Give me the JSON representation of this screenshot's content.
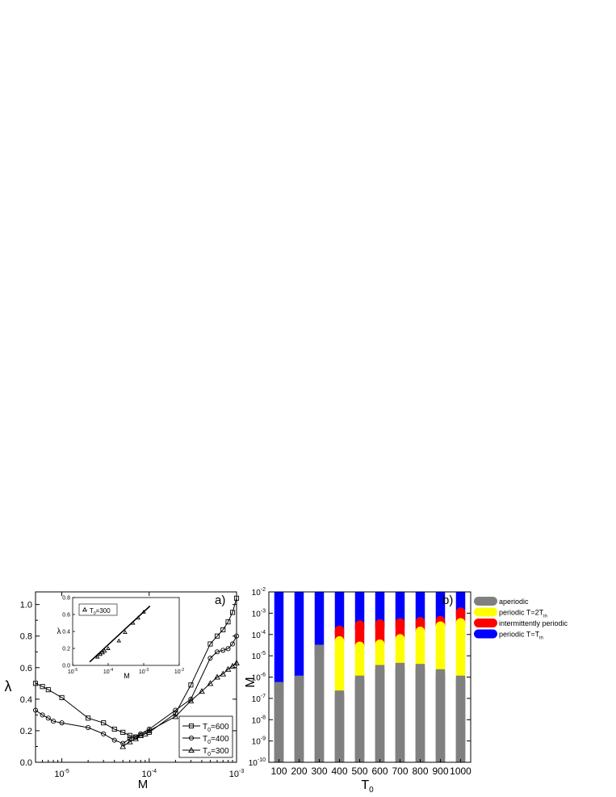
{
  "chart_data": [
    {
      "id": "a",
      "type": "line",
      "panel_label": "a)",
      "xlabel": "M",
      "ylabel": "λ",
      "xscale": "log",
      "xlim": [
        5e-06,
        0.001
      ],
      "ylim": [
        0.0,
        1.08
      ],
      "x_ticks": [
        {
          "value": 1e-05,
          "base": "10",
          "exp": "-5"
        },
        {
          "value": 0.0001,
          "base": "10",
          "exp": "-4"
        },
        {
          "value": 0.001,
          "base": "10",
          "exp": "-3"
        }
      ],
      "y_ticks": [
        "0.0",
        "0.2",
        "0.4",
        "0.6",
        "0.8",
        "1.0"
      ],
      "legend_position": "bottom-right",
      "series": [
        {
          "name_base": "T",
          "name_sub": "0",
          "name_rest": "=600",
          "marker": "square",
          "x": [
            5e-06,
            6e-06,
            7e-06,
            1e-05,
            2e-05,
            3e-05,
            4e-05,
            5e-05,
            6e-05,
            7e-05,
            8e-05,
            0.0001,
            0.0002,
            0.0003,
            0.0005,
            0.0006,
            0.0007,
            0.0008,
            0.0009,
            0.001
          ],
          "y": [
            0.5,
            0.48,
            0.46,
            0.41,
            0.28,
            0.25,
            0.21,
            0.19,
            0.17,
            0.16,
            0.17,
            0.19,
            0.31,
            0.49,
            0.75,
            0.8,
            0.84,
            0.89,
            0.95,
            1.04
          ]
        },
        {
          "name_base": "T",
          "name_sub": "0",
          "name_rest": "=400",
          "marker": "circle",
          "x": [
            5e-06,
            6e-06,
            7e-06,
            8e-06,
            1e-05,
            2e-05,
            3e-05,
            4e-05,
            5e-05,
            6e-05,
            7e-05,
            8e-05,
            0.0001,
            0.0002,
            0.0003,
            0.0005,
            0.0006,
            0.0007,
            0.0008,
            0.0009,
            0.001
          ],
          "y": [
            0.33,
            0.3,
            0.28,
            0.26,
            0.25,
            0.22,
            0.18,
            0.14,
            0.12,
            0.15,
            0.16,
            0.18,
            0.21,
            0.33,
            0.4,
            0.66,
            0.7,
            0.71,
            0.72,
            0.75,
            0.8
          ]
        },
        {
          "name_base": "T",
          "name_sub": "0",
          "name_rest": "=300",
          "marker": "triangle",
          "x": [
            5e-05,
            6e-05,
            7e-05,
            8e-05,
            9e-05,
            0.0001,
            0.0002,
            0.0003,
            0.0004,
            0.0005,
            0.0006,
            0.0007,
            0.0008,
            0.0009,
            0.001
          ],
          "y": [
            0.1,
            0.13,
            0.15,
            0.17,
            0.18,
            0.2,
            0.29,
            0.39,
            0.45,
            0.5,
            0.54,
            0.56,
            0.59,
            0.61,
            0.63
          ]
        }
      ],
      "inset": {
        "xlabel": "M",
        "ylabel": "λ",
        "xscale": "log",
        "xlim": [
          1e-05,
          0.01
        ],
        "ylim": [
          0.0,
          0.8
        ],
        "x_ticks": [
          {
            "value": 1e-05,
            "base": "10",
            "exp": "-5"
          },
          {
            "value": 0.0001,
            "base": "10",
            "exp": "-4"
          },
          {
            "value": 0.001,
            "base": "10",
            "exp": "-3"
          },
          {
            "value": 0.01,
            "base": "10",
            "exp": "-2"
          }
        ],
        "y_ticks": [
          "0.0",
          "0.2",
          "0.4",
          "0.6",
          "0.8"
        ],
        "legend": {
          "name_base": "T",
          "name_sub": "0",
          "name_rest": "=300"
        },
        "points_x": [
          5e-05,
          6e-05,
          7e-05,
          8e-05,
          0.0001,
          0.0002,
          0.0003,
          0.0005,
          0.0007,
          0.001
        ],
        "points_y": [
          0.1,
          0.13,
          0.15,
          0.17,
          0.2,
          0.29,
          0.39,
          0.5,
          0.56,
          0.63
        ],
        "fit_x": [
          3e-05,
          0.0015
        ],
        "fit_y": [
          0.04,
          0.7
        ]
      }
    },
    {
      "id": "b",
      "type": "bar",
      "panel_label": "b)",
      "xlabel": "T",
      "xlabel_sub": "0",
      "ylabel": "M",
      "yscale": "log",
      "ylim_exp": [
        -10,
        -2
      ],
      "y_ticks": [
        {
          "base": "10",
          "exp": "-10"
        },
        {
          "base": "10",
          "exp": "-9"
        },
        {
          "base": "10",
          "exp": "-8"
        },
        {
          "base": "10",
          "exp": "-7"
        },
        {
          "base": "10",
          "exp": "-6"
        },
        {
          "base": "10",
          "exp": "-5"
        },
        {
          "base": "10",
          "exp": "-4"
        },
        {
          "base": "10",
          "exp": "-3"
        },
        {
          "base": "10",
          "exp": "-2"
        }
      ],
      "categories": [
        "100",
        "200",
        "300",
        "400",
        "500",
        "600",
        "700",
        "800",
        "900",
        "1000"
      ],
      "regions": [
        {
          "key": "aperiodic",
          "color": "#808080"
        },
        {
          "key": "period2",
          "color": "#ffff00"
        },
        {
          "key": "intermittent",
          "color": "#ff0000"
        },
        {
          "key": "period1",
          "color": "#0000ff"
        }
      ],
      "boundaries_log10": [
        {
          "aperiodic_to": -6.45,
          "period2_to": -6.45,
          "intermittent_to": -6.45
        },
        {
          "aperiodic_to": -6.15,
          "period2_to": -6.15,
          "intermittent_to": -6.15
        },
        {
          "aperiodic_to": -4.7,
          "period2_to": -4.7,
          "intermittent_to": -4.7
        },
        {
          "aperiodic_to": -6.85,
          "period2_to": -4.3,
          "intermittent_to": -3.8
        },
        {
          "aperiodic_to": -6.15,
          "period2_to": -4.55,
          "intermittent_to": -3.55
        },
        {
          "aperiodic_to": -5.65,
          "period2_to": -4.45,
          "intermittent_to": -3.5
        },
        {
          "aperiodic_to": -5.55,
          "period2_to": -4.2,
          "intermittent_to": -3.45
        },
        {
          "aperiodic_to": -5.6,
          "period2_to": -3.85,
          "intermittent_to": -3.4
        },
        {
          "aperiodic_to": -5.85,
          "period2_to": -3.6,
          "intermittent_to": -3.35
        },
        {
          "aperiodic_to": -6.15,
          "period2_to": -3.45,
          "intermittent_to": -2.95
        }
      ],
      "legend": [
        {
          "color": "#808080",
          "label": "aperiodic",
          "sub": ""
        },
        {
          "color": "#ffff00",
          "label": "periodic T=2T",
          "sub": "in"
        },
        {
          "color": "#ff0000",
          "label": "intermittently periodic",
          "sub": ""
        },
        {
          "color": "#0000ff",
          "label": "periodic T=T",
          "sub": "in"
        }
      ]
    }
  ]
}
